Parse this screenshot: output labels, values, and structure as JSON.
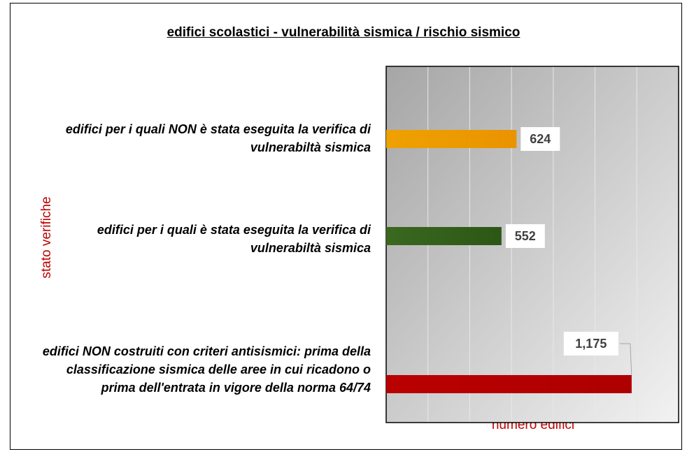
{
  "chart_data": {
    "type": "bar",
    "orientation": "horizontal",
    "title": "edifici scolastici - vulnerabilità sismica / rischio sismico",
    "xlabel": "numero edifici",
    "ylabel": "stato verifiche",
    "categories": [
      "edifici per i quali NON è stata eseguita la verifica di vulnerabiltà sismica",
      "edifici per i quali è stata eseguita la verifica di vulnerabiltà sismica",
      "edifici NON costruiti con criteri antisismici: prima della classificazione sismica delle aree in cui ricadono o prima dell'entrata in vigore della norma 64/74"
    ],
    "values": [
      624,
      552,
      1175
    ],
    "value_labels": [
      "624",
      "552",
      "1,175"
    ],
    "colors": [
      "#f2b300",
      "#4b7d2a",
      "#c80000"
    ],
    "xlim": [
      0,
      1400
    ],
    "xticks": [
      0,
      200,
      400,
      600,
      800,
      1000,
      1200,
      1400
    ],
    "grid": true
  }
}
